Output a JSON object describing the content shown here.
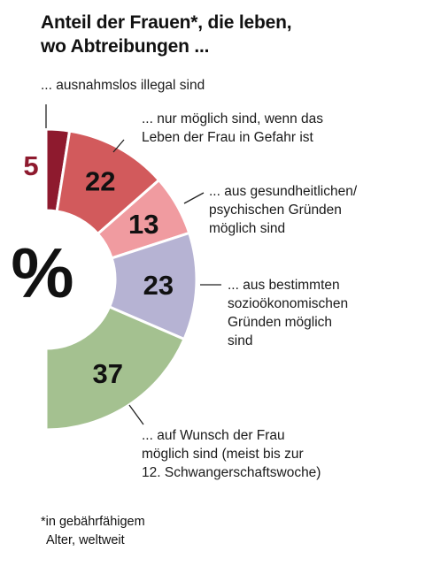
{
  "header": {
    "title_lines": [
      "Anteil der Frauen*, die leben,",
      "wo Abtreibungen ..."
    ]
  },
  "chart_data": {
    "type": "pie",
    "subtype": "half-donut",
    "unit_symbol": "%",
    "slices": [
      {
        "value": 5,
        "display": "5",
        "color": "#8e1a2e",
        "value_color": "#8e1a2e",
        "label_lines": [
          "... ausnahmslos illegal sind"
        ]
      },
      {
        "value": 22,
        "display": "22",
        "color": "#d25a5c",
        "value_color": "#111111",
        "label_lines": [
          "... nur möglich sind, wenn das",
          "Leben der Frau in Gefahr ist"
        ]
      },
      {
        "value": 13,
        "display": "13",
        "color": "#f09ba0",
        "value_color": "#111111",
        "label_lines": [
          "... aus gesundheitlichen/",
          "psychischen Gründen",
          "möglich sind"
        ]
      },
      {
        "value": 23,
        "display": "23",
        "color": "#b6b3d3",
        "value_color": "#111111",
        "label_lines": [
          "... aus bestimmten",
          "sozioökonomischen",
          "Gründen möglich",
          "sind"
        ]
      },
      {
        "value": 37,
        "display": "37",
        "color": "#a4c190",
        "value_color": "#111111",
        "label_lines": [
          "... auf Wunsch der Frau",
          "möglich sind (meist bis zur",
          "12. Schwangerschaftswoche)"
        ]
      }
    ]
  },
  "footnote": {
    "lines": [
      "*in gebährfähigem",
      "Alter, weltweit"
    ]
  }
}
